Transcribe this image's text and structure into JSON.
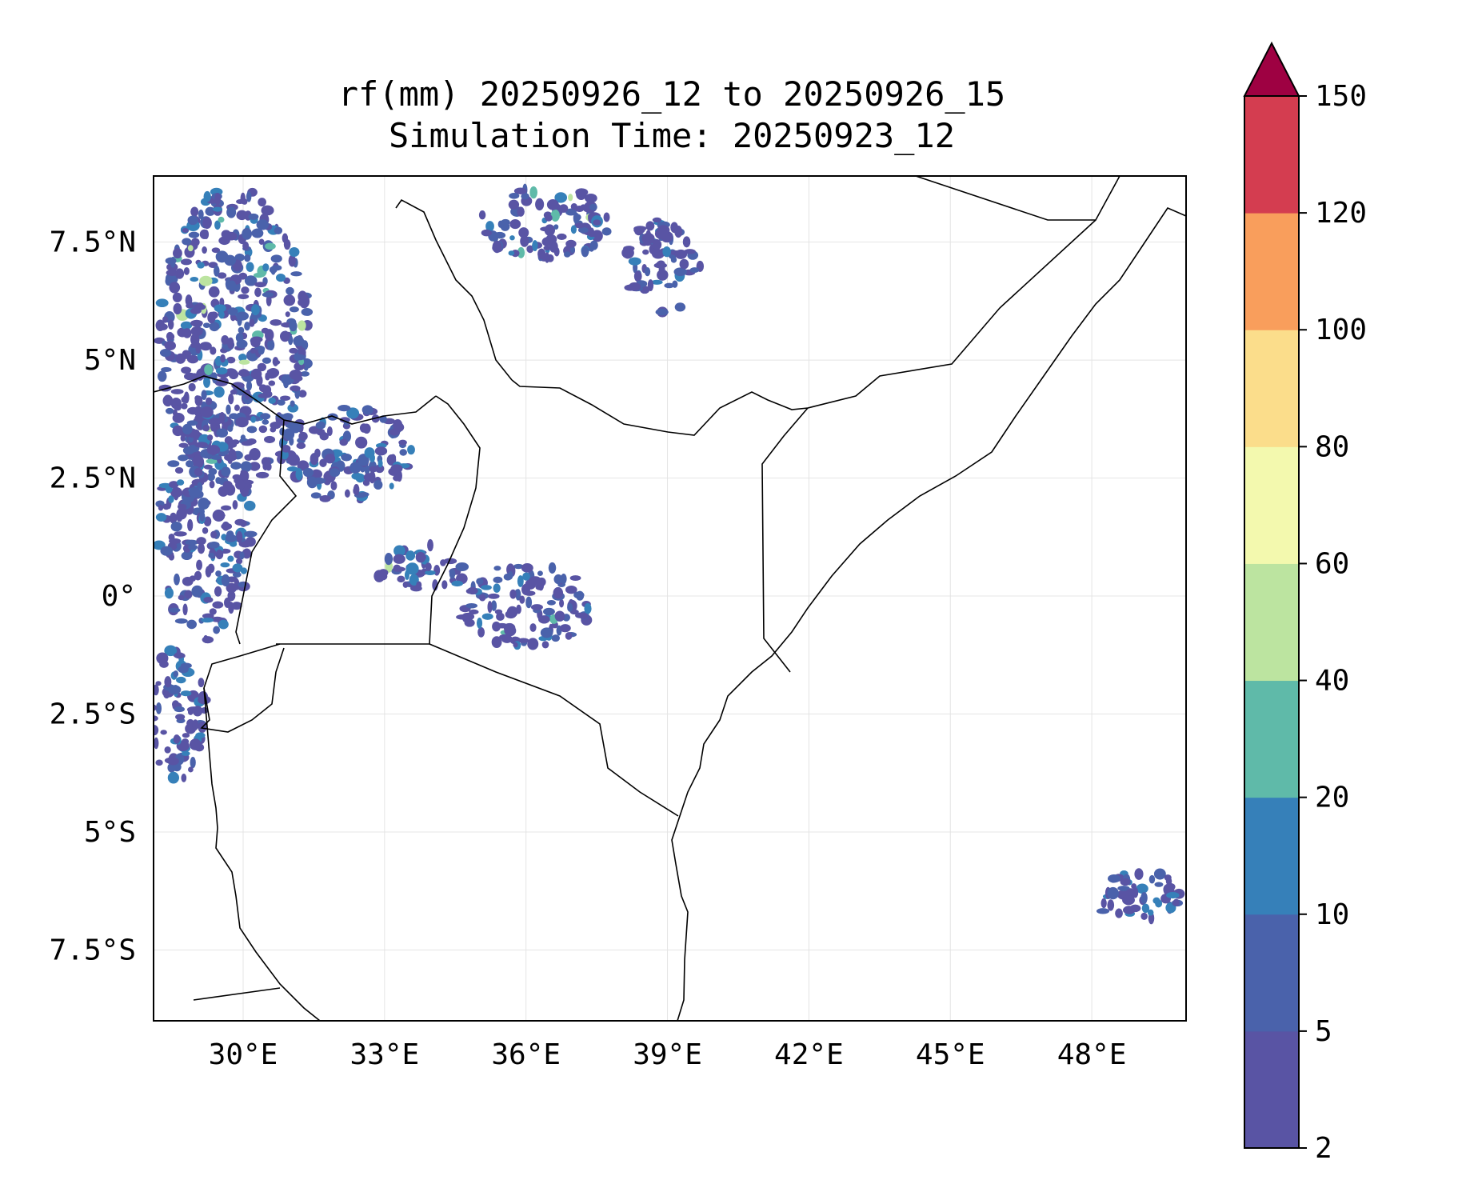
{
  "title": {
    "line1": "rf(mm) 20250926_12 to 20250926_15",
    "line2": "Simulation Time: 20250923_12"
  },
  "map": {
    "lon_range": [
      28.1,
      50.0
    ],
    "lat_range": [
      -9.0,
      8.9
    ],
    "lon_ticks": [
      {
        "value": 30,
        "label": "30°E"
      },
      {
        "value": 33,
        "label": "33°E"
      },
      {
        "value": 36,
        "label": "36°E"
      },
      {
        "value": 39,
        "label": "39°E"
      },
      {
        "value": 42,
        "label": "42°E"
      },
      {
        "value": 45,
        "label": "45°E"
      },
      {
        "value": 48,
        "label": "48°E"
      }
    ],
    "lat_ticks": [
      {
        "value": 7.5,
        "label": "7.5°N"
      },
      {
        "value": 5,
        "label": "5°N"
      },
      {
        "value": 2.5,
        "label": "2.5°N"
      },
      {
        "value": 0,
        "label": "0°"
      },
      {
        "value": -2.5,
        "label": "2.5°S"
      },
      {
        "value": -5,
        "label": "5°S"
      },
      {
        "value": -7.5,
        "label": "7.5°S"
      }
    ],
    "rain_clusters": [
      {
        "region": "south-sudan-ethiopia-west",
        "lon": 29.8,
        "lat": 5.5,
        "rlon": 1.6,
        "rlat": 3.2,
        "level": 2
      },
      {
        "region": "uganda-north",
        "lon": 32.2,
        "lat": 3.0,
        "rlon": 1.4,
        "rlat": 1.0,
        "level": 1
      },
      {
        "region": "drc-east",
        "lon": 29.2,
        "lat": 1.5,
        "rlon": 1.0,
        "rlat": 2.5,
        "level": 1
      },
      {
        "region": "lake-victoria-north",
        "lon": 33.8,
        "lat": 0.6,
        "rlon": 1.0,
        "rlat": 0.5,
        "level": 2
      },
      {
        "region": "kenya-highlands",
        "lon": 36.0,
        "lat": -0.2,
        "rlon": 1.4,
        "rlat": 0.9,
        "level": 2
      },
      {
        "region": "ethiopia-highlands",
        "lon": 36.4,
        "lat": 7.9,
        "rlon": 1.4,
        "rlat": 0.8,
        "level": 2
      },
      {
        "region": "ethiopia-southwest",
        "lon": 38.9,
        "lat": 7.0,
        "rlon": 0.8,
        "rlat": 1.0,
        "level": 1
      },
      {
        "region": "tanzania-west",
        "lon": 28.6,
        "lat": -2.5,
        "rlon": 0.6,
        "rlat": 1.4,
        "level": 1
      },
      {
        "region": "indian-ocean-southeast",
        "lon": 49.0,
        "lat": -6.4,
        "rlon": 0.9,
        "rlat": 0.6,
        "level": 1
      }
    ]
  },
  "colorbar": {
    "colors": [
      "#5954a4",
      "#4a62ab",
      "#3680b9",
      "#5fbaa9",
      "#bce4a0",
      "#f3f9ae",
      "#fbdd8b",
      "#f99e5c",
      "#d43d50"
    ],
    "extend_color": "#9e0142",
    "tick_labels": [
      "2",
      "5",
      "10",
      "20",
      "40",
      "60",
      "80",
      "100",
      "120",
      "150"
    ]
  }
}
